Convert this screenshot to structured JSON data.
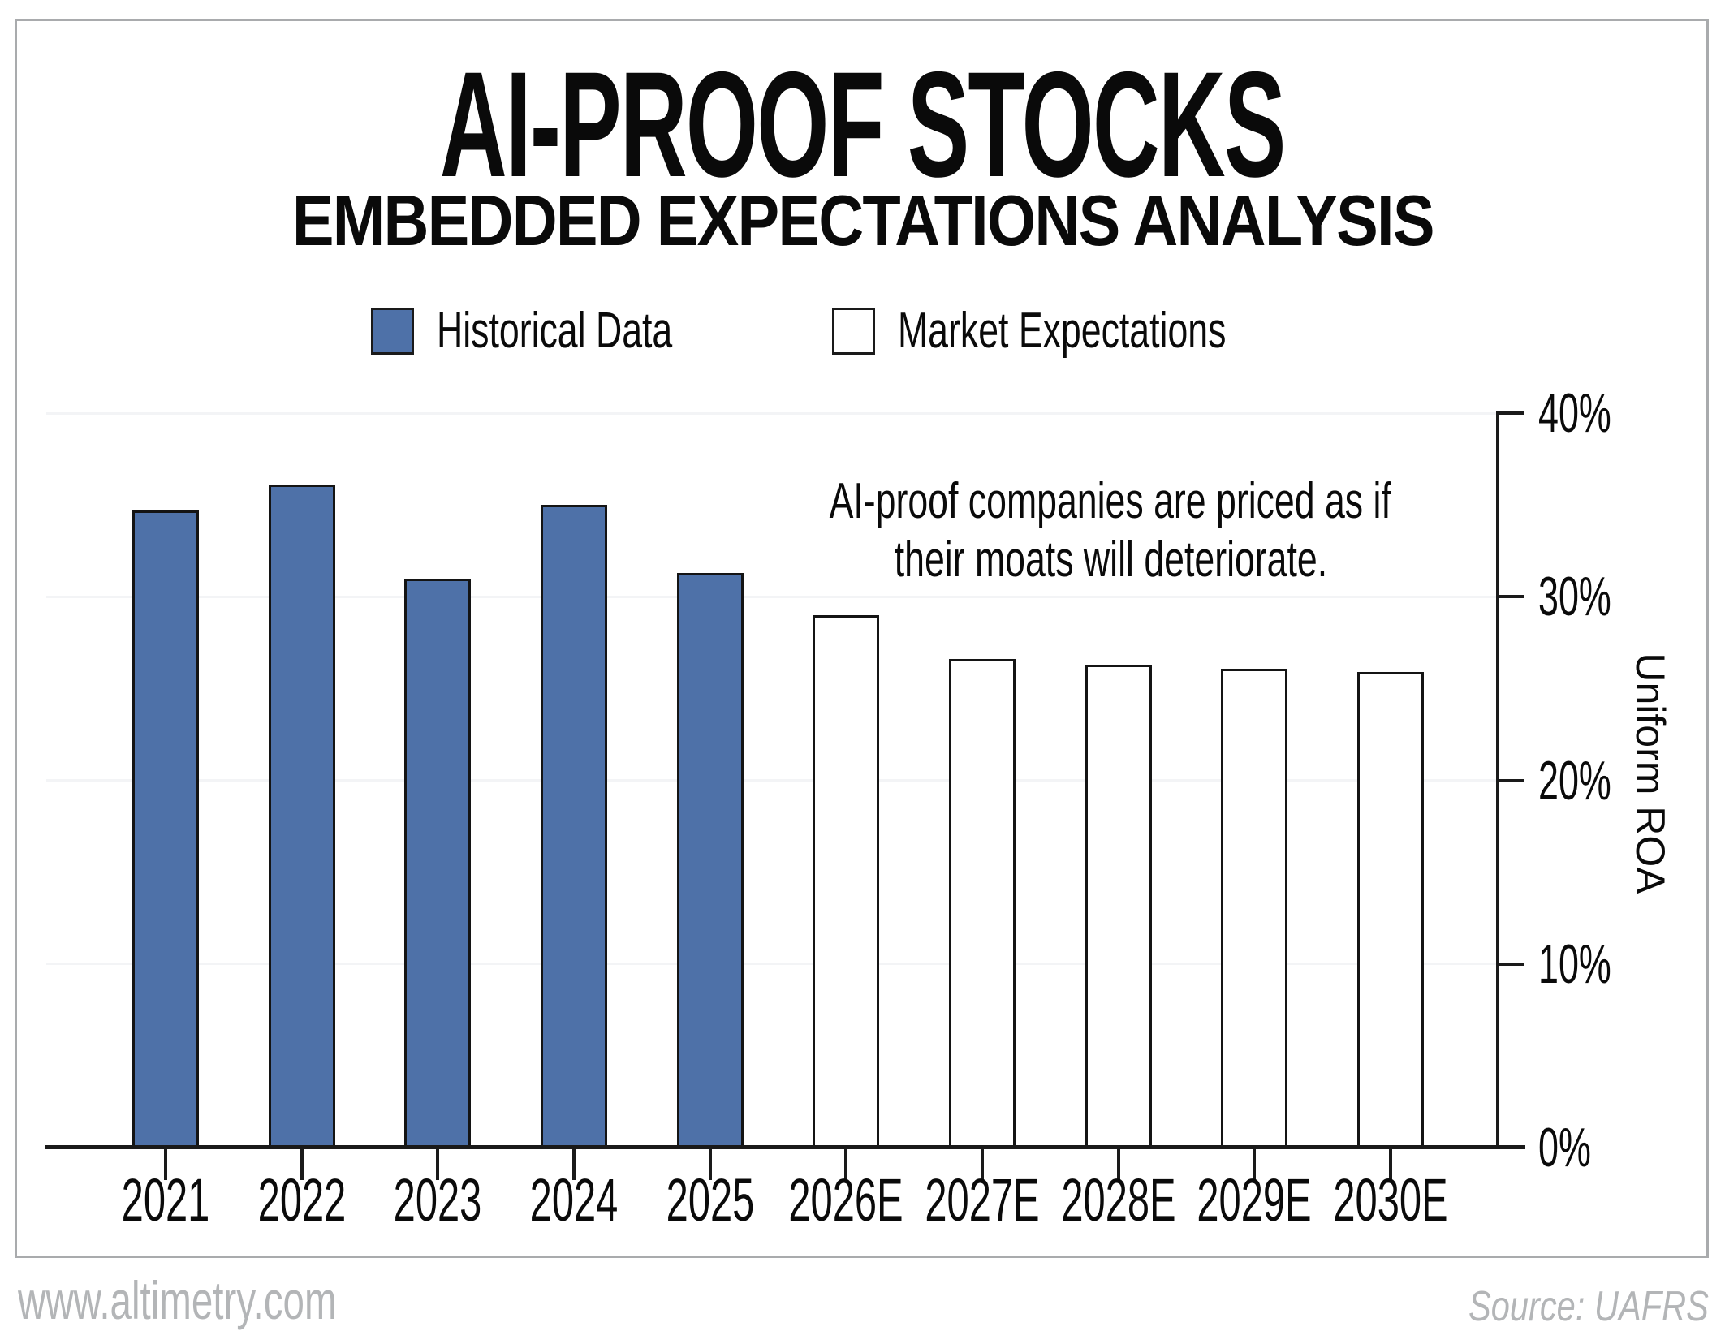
{
  "chart_data": {
    "type": "bar",
    "title": "AI-PROOF STOCKS",
    "subtitle": "EMBEDDED EXPECTATIONS ANALYSIS",
    "categories": [
      "2021",
      "2022",
      "2023",
      "2024",
      "2025",
      "2026E",
      "2027E",
      "2028E",
      "2029E",
      "2030E"
    ],
    "series": [
      {
        "name": "Historical Data",
        "style": "historical",
        "values": [
          34.7,
          36.1,
          31.0,
          35.0,
          31.3,
          null,
          null,
          null,
          null,
          null
        ]
      },
      {
        "name": "Market Expectations",
        "style": "expectation",
        "values": [
          null,
          null,
          null,
          null,
          null,
          29.0,
          26.6,
          26.3,
          26.1,
          25.9
        ]
      }
    ],
    "ylabel": "Uniform ROA",
    "ylim": [
      0,
      40
    ],
    "yticks": [
      {
        "label": "0%",
        "value": 0
      },
      {
        "label": "10%",
        "value": 10
      },
      {
        "label": "20%",
        "value": 20
      },
      {
        "label": "30%",
        "value": 30
      },
      {
        "label": "40%",
        "value": 40
      }
    ],
    "grid": "horizontal-light",
    "legend_position": "top-center",
    "annotation_lines": [
      "AI-proof companies are priced as if",
      "their moats will deteriorate."
    ]
  },
  "footer": {
    "website": "www.altimetry.com",
    "source": "Source: UAFRS"
  },
  "colors": {
    "historical_fill": "#4E71A8",
    "expectations_fill": "#FFFFFF",
    "bar_border": "#141414",
    "axis": "#1A1A1A",
    "gridline": "#F3F4F6",
    "frame_border": "#A9ABAD",
    "footer_text": "#B3B5B7"
  }
}
